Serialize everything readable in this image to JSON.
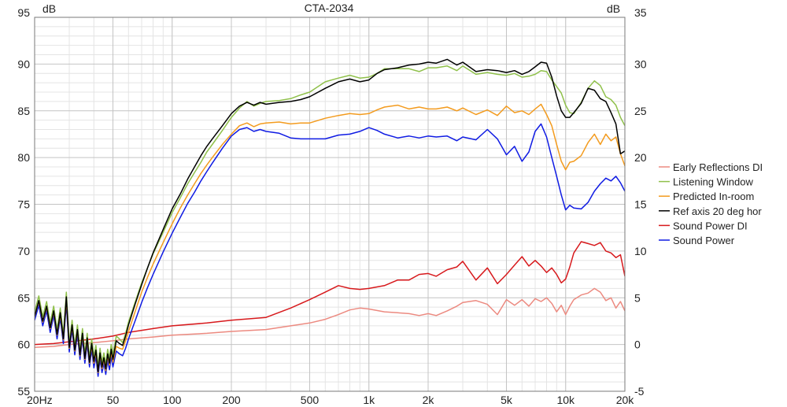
{
  "chart_data": {
    "type": "line",
    "title": "CTA-2034",
    "left_axis": {
      "unit": "dB",
      "range": [
        55,
        95
      ],
      "ticks": [
        55,
        60,
        65,
        70,
        75,
        80,
        85,
        90,
        95
      ]
    },
    "right_axis": {
      "unit": "dB",
      "range": [
        -5,
        35
      ],
      "ticks": [
        -5,
        0,
        5,
        10,
        15,
        20,
        25,
        30,
        35
      ]
    },
    "x_axis": {
      "scale": "log",
      "range": [
        20,
        20000
      ],
      "tick_values": [
        20,
        50,
        100,
        200,
        500,
        1000,
        2000,
        5000,
        10000,
        20000
      ],
      "tick_labels": [
        "20Hz",
        "50",
        "100",
        "200",
        "500",
        "1k",
        "2k",
        "5k",
        "10k",
        "20k"
      ]
    },
    "grid": true,
    "legend_position": "right",
    "legend": [
      "Early Reflections DI",
      "Listening Window",
      "Predicted In-room",
      "Ref axis 20 deg hor",
      "Sound Power DI",
      "Sound Power"
    ],
    "series": [
      {
        "name": "Listening Window",
        "color": "#8fc04a",
        "axis": "left",
        "x": [
          20,
          21,
          22,
          23,
          24,
          25,
          26,
          27,
          28,
          29,
          30,
          31,
          32,
          33,
          34,
          35,
          36,
          37,
          38,
          39,
          40,
          41,
          42,
          43,
          44,
          45,
          46,
          47,
          48,
          49,
          50,
          52,
          54,
          56,
          58,
          60,
          65,
          70,
          75,
          80,
          90,
          100,
          110,
          120,
          130,
          140,
          150,
          160,
          180,
          200,
          220,
          240,
          260,
          280,
          300,
          350,
          400,
          450,
          500,
          600,
          700,
          800,
          900,
          1000,
          1100,
          1200,
          1400,
          1600,
          1800,
          2000,
          2200,
          2500,
          2800,
          3000,
          3500,
          4000,
          4500,
          5000,
          5500,
          6000,
          6500,
          7000,
          7500,
          8000,
          8500,
          9000,
          9500,
          10000,
          10500,
          11000,
          12000,
          13000,
          14000,
          15000,
          16000,
          17000,
          18000,
          19000,
          20000
        ],
        "y": [
          63.5,
          65.2,
          63.0,
          64.6,
          62.3,
          64.1,
          61.6,
          63.9,
          61.1,
          65.6,
          60.2,
          62.6,
          59.9,
          62.1,
          59.4,
          61.7,
          59.0,
          61.2,
          58.6,
          60.6,
          58.7,
          59.9,
          57.6,
          59.6,
          58.1,
          59.1,
          57.9,
          59.5,
          58.5,
          60.0,
          58.9,
          60.9,
          60.6,
          60.2,
          61.2,
          62.4,
          64.6,
          66.6,
          68.2,
          69.7,
          72.0,
          74.1,
          75.7,
          77.2,
          78.4,
          79.5,
          80.6,
          81.4,
          82.9,
          84.3,
          85.3,
          86.0,
          85.5,
          85.8,
          86.0,
          86.1,
          86.3,
          86.7,
          87.0,
          88.1,
          88.5,
          88.8,
          88.5,
          88.6,
          89.0,
          89.5,
          89.5,
          89.5,
          89.2,
          89.6,
          89.6,
          89.8,
          89.3,
          89.8,
          88.9,
          89.1,
          88.9,
          88.8,
          89.0,
          88.6,
          88.7,
          88.9,
          89.3,
          89.2,
          88.3,
          87.6,
          86.9,
          85.6,
          84.8,
          84.7,
          85.9,
          87.4,
          88.2,
          87.7,
          86.5,
          86.2,
          85.6,
          84.3,
          83.4
        ]
      },
      {
        "name": "Ref axis 20 deg hor",
        "color": "#000000",
        "axis": "left",
        "x": [
          20,
          21,
          22,
          23,
          24,
          25,
          26,
          27,
          28,
          29,
          30,
          31,
          32,
          33,
          34,
          35,
          36,
          37,
          38,
          39,
          40,
          41,
          42,
          43,
          44,
          45,
          46,
          47,
          48,
          49,
          50,
          52,
          54,
          56,
          58,
          60,
          65,
          70,
          75,
          80,
          90,
          100,
          110,
          120,
          130,
          140,
          150,
          160,
          180,
          200,
          220,
          240,
          260,
          280,
          300,
          350,
          400,
          450,
          500,
          600,
          700,
          800,
          900,
          1000,
          1100,
          1200,
          1400,
          1600,
          1800,
          2000,
          2200,
          2500,
          2800,
          3000,
          3500,
          4000,
          4500,
          5000,
          5500,
          6000,
          6500,
          7000,
          7500,
          8000,
          8500,
          9000,
          9500,
          10000,
          10500,
          11000,
          12000,
          13000,
          14000,
          15000,
          16000,
          17000,
          18000,
          19000,
          20000
        ],
        "y": [
          63.0,
          64.7,
          62.5,
          64.1,
          61.8,
          63.6,
          61.1,
          63.4,
          60.6,
          65.1,
          59.7,
          62.1,
          59.4,
          61.6,
          58.9,
          61.2,
          58.5,
          60.7,
          58.1,
          60.1,
          58.2,
          59.4,
          57.1,
          59.1,
          57.6,
          58.6,
          57.4,
          59.0,
          58.0,
          59.5,
          58.4,
          60.4,
          60.1,
          59.9,
          60.9,
          62.1,
          64.4,
          66.4,
          68.2,
          69.8,
          72.3,
          74.5,
          76.1,
          77.7,
          79.0,
          80.2,
          81.2,
          82.0,
          83.4,
          84.7,
          85.5,
          85.9,
          85.6,
          85.9,
          85.7,
          85.9,
          86.0,
          86.2,
          86.5,
          87.4,
          88.1,
          88.4,
          88.1,
          88.3,
          89.0,
          89.4,
          89.6,
          89.9,
          90.0,
          90.2,
          90.1,
          90.5,
          89.9,
          90.2,
          89.2,
          89.4,
          89.3,
          89.1,
          89.3,
          88.9,
          89.2,
          89.7,
          90.2,
          90.1,
          88.6,
          86.6,
          85.0,
          84.3,
          84.3,
          84.8,
          85.8,
          87.4,
          87.2,
          86.3,
          86.0,
          84.8,
          83.6,
          80.4,
          80.7
        ]
      },
      {
        "name": "Predicted In-room",
        "color": "#f39b1e",
        "axis": "left",
        "x": [
          20,
          21,
          22,
          23,
          24,
          25,
          26,
          27,
          28,
          29,
          30,
          31,
          32,
          33,
          34,
          35,
          36,
          37,
          38,
          39,
          40,
          41,
          42,
          43,
          44,
          45,
          46,
          47,
          48,
          49,
          50,
          52,
          54,
          56,
          58,
          60,
          65,
          70,
          75,
          80,
          90,
          100,
          110,
          120,
          130,
          140,
          150,
          160,
          180,
          200,
          220,
          240,
          260,
          280,
          300,
          350,
          400,
          450,
          500,
          600,
          700,
          800,
          900,
          1000,
          1100,
          1200,
          1400,
          1600,
          1800,
          2000,
          2200,
          2500,
          2800,
          3000,
          3500,
          4000,
          4500,
          5000,
          5500,
          6000,
          6500,
          7000,
          7500,
          8000,
          8500,
          9000,
          9500,
          10000,
          10500,
          11000,
          12000,
          13000,
          14000,
          15000,
          16000,
          17000,
          18000,
          19000,
          20000
        ],
        "y": [
          63.0,
          64.6,
          62.4,
          64.0,
          61.7,
          63.5,
          61.0,
          63.2,
          60.5,
          64.8,
          59.6,
          62.0,
          59.3,
          61.5,
          58.8,
          61.0,
          58.4,
          60.5,
          58.0,
          59.9,
          58.0,
          59.2,
          57.0,
          58.9,
          57.4,
          58.4,
          57.2,
          58.8,
          57.8,
          59.2,
          58.1,
          59.8,
          59.6,
          59.5,
          60.4,
          61.4,
          63.6,
          65.6,
          67.2,
          68.6,
          70.9,
          72.9,
          74.6,
          76.0,
          77.2,
          78.3,
          79.2,
          80.0,
          81.4,
          82.5,
          83.4,
          83.7,
          83.3,
          83.6,
          83.7,
          83.8,
          83.6,
          83.7,
          83.7,
          84.2,
          84.5,
          84.7,
          84.6,
          84.7,
          85.1,
          85.4,
          85.6,
          85.2,
          85.4,
          85.2,
          85.2,
          85.4,
          85.0,
          85.3,
          84.6,
          85.1,
          84.5,
          85.5,
          84.8,
          85.0,
          84.6,
          85.2,
          85.7,
          84.6,
          83.4,
          81.4,
          79.6,
          78.7,
          79.5,
          79.6,
          80.2,
          81.6,
          82.5,
          81.4,
          82.5,
          81.8,
          82.2,
          80.4,
          79.1
        ]
      },
      {
        "name": "Sound Power",
        "color": "#0f1be3",
        "axis": "left",
        "x": [
          20,
          21,
          22,
          23,
          24,
          25,
          26,
          27,
          28,
          29,
          30,
          31,
          32,
          33,
          34,
          35,
          36,
          37,
          38,
          39,
          40,
          41,
          42,
          43,
          44,
          45,
          46,
          47,
          48,
          49,
          50,
          52,
          54,
          56,
          58,
          60,
          65,
          70,
          75,
          80,
          90,
          100,
          110,
          120,
          130,
          140,
          150,
          160,
          180,
          200,
          220,
          240,
          260,
          280,
          300,
          350,
          400,
          450,
          500,
          600,
          700,
          800,
          900,
          1000,
          1100,
          1200,
          1400,
          1600,
          1800,
          2000,
          2200,
          2500,
          2800,
          3000,
          3500,
          4000,
          4500,
          5000,
          5500,
          6000,
          6500,
          7000,
          7500,
          8000,
          8500,
          9000,
          9500,
          10000,
          10500,
          11000,
          12000,
          13000,
          14000,
          15000,
          16000,
          17000,
          18000,
          19000,
          20000
        ],
        "y": [
          62.6,
          64.2,
          62.0,
          63.6,
          61.3,
          63.1,
          60.6,
          62.8,
          60.1,
          64.3,
          59.2,
          61.6,
          58.9,
          61.1,
          58.4,
          60.6,
          58.0,
          60.1,
          57.6,
          59.5,
          57.5,
          58.7,
          56.6,
          58.4,
          57.0,
          58.0,
          56.8,
          58.3,
          57.3,
          58.7,
          57.6,
          59.3,
          59.0,
          58.8,
          59.6,
          60.6,
          62.6,
          64.5,
          66.1,
          67.5,
          69.9,
          71.9,
          73.6,
          75.1,
          76.3,
          77.5,
          78.5,
          79.4,
          81.0,
          82.3,
          83.0,
          83.2,
          82.8,
          83.0,
          82.8,
          82.6,
          82.1,
          82.0,
          82.0,
          82.0,
          82.4,
          82.5,
          82.8,
          83.2,
          82.9,
          82.5,
          82.1,
          82.3,
          82.1,
          82.3,
          82.2,
          82.3,
          81.8,
          82.2,
          81.9,
          83.0,
          82.0,
          80.3,
          81.2,
          79.6,
          80.6,
          82.8,
          83.6,
          82.2,
          80.0,
          78.0,
          76.0,
          74.4,
          74.9,
          74.6,
          74.5,
          75.2,
          76.4,
          77.2,
          77.8,
          77.5,
          78.0,
          77.3,
          76.4
        ]
      },
      {
        "name": "Early Reflections DI",
        "color": "#ec8a80",
        "axis": "right",
        "x": [
          20,
          25,
          30,
          40,
          50,
          60,
          80,
          100,
          150,
          200,
          300,
          400,
          500,
          600,
          700,
          800,
          900,
          1000,
          1200,
          1400,
          1600,
          1800,
          2000,
          2200,
          2500,
          2800,
          3000,
          3500,
          4000,
          4500,
          5000,
          5500,
          6000,
          6500,
          7000,
          7500,
          8000,
          8500,
          9000,
          9500,
          10000,
          10500,
          11000,
          12000,
          13000,
          14000,
          15000,
          16000,
          17000,
          18000,
          19000,
          20000
        ],
        "y": [
          -0.3,
          -0.2,
          0.0,
          0.2,
          0.4,
          0.6,
          0.8,
          1.0,
          1.2,
          1.4,
          1.6,
          2.0,
          2.3,
          2.7,
          3.2,
          3.7,
          3.9,
          3.8,
          3.5,
          3.4,
          3.3,
          3.1,
          3.3,
          3.1,
          3.6,
          4.1,
          4.5,
          4.7,
          4.3,
          3.2,
          4.8,
          4.2,
          4.8,
          4.1,
          4.9,
          4.6,
          5.0,
          4.4,
          3.5,
          4.2,
          3.2,
          4.1,
          4.8,
          5.3,
          5.5,
          6.0,
          5.6,
          4.7,
          5.0,
          3.9,
          4.6,
          3.6
        ]
      },
      {
        "name": "Sound Power DI",
        "color": "#d7191c",
        "axis": "right",
        "x": [
          20,
          25,
          30,
          40,
          50,
          60,
          80,
          100,
          150,
          200,
          300,
          400,
          500,
          600,
          700,
          800,
          900,
          1000,
          1200,
          1400,
          1600,
          1800,
          2000,
          2200,
          2500,
          2800,
          3000,
          3500,
          4000,
          4500,
          5000,
          5500,
          6000,
          6500,
          7000,
          7500,
          8000,
          8500,
          9000,
          9500,
          10000,
          10500,
          11000,
          12000,
          13000,
          14000,
          15000,
          16000,
          17000,
          18000,
          19000,
          20000
        ],
        "y": [
          0.0,
          0.1,
          0.3,
          0.6,
          0.9,
          1.3,
          1.7,
          2.0,
          2.3,
          2.6,
          2.9,
          3.9,
          4.8,
          5.6,
          6.3,
          6.0,
          5.9,
          6.0,
          6.3,
          6.9,
          6.9,
          7.5,
          7.6,
          7.3,
          8.0,
          8.3,
          8.9,
          6.9,
          8.2,
          6.5,
          7.5,
          8.5,
          9.4,
          8.4,
          9.0,
          8.4,
          7.7,
          8.2,
          7.5,
          6.6,
          7.0,
          8.3,
          9.8,
          11.0,
          10.8,
          10.6,
          10.9,
          10.0,
          9.8,
          9.3,
          9.6,
          7.3
        ]
      }
    ]
  }
}
